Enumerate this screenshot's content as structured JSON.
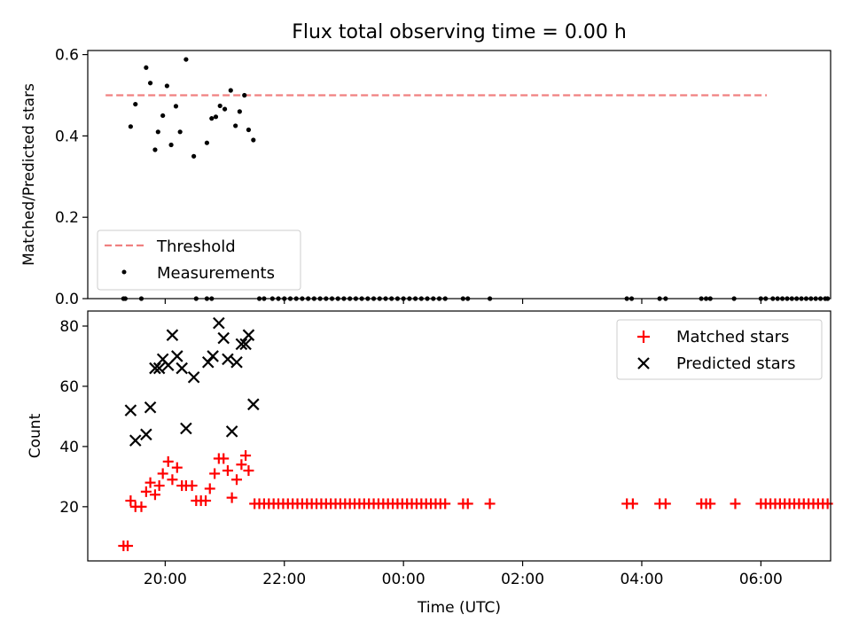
{
  "chart_data": [
    {
      "type": "scatter",
      "title": "Flux total observing time = 0.00 h",
      "ylabel": "Matched/Predicted stars",
      "xlabel": "",
      "xlim": [
        18.7,
        31.17
      ],
      "ylim": [
        0.0,
        0.61
      ],
      "yticks": [
        0.0,
        0.2,
        0.4,
        0.6
      ],
      "ytick_labels": [
        "0.0",
        "0.2",
        "0.4",
        "0.6"
      ],
      "x_tick_hours": [
        20,
        22,
        24,
        26,
        28,
        30
      ],
      "grid": false,
      "legend": {
        "position": "lower-left",
        "entries": [
          "Threshold",
          "Measurements"
        ]
      },
      "threshold": {
        "name": "Threshold",
        "value": 0.5,
        "x_start": 19.0,
        "x_end": 30.1,
        "color": "#f08080",
        "style": "dashed"
      },
      "series": [
        {
          "name": "Measurements",
          "marker": "dot",
          "color": "#000000",
          "points": [
            [
              19.3,
              0.0
            ],
            [
              19.33,
              0.0
            ],
            [
              19.6,
              0.0
            ],
            [
              19.42,
              0.423
            ],
            [
              19.5,
              0.478
            ],
            [
              19.68,
              0.568
            ],
            [
              19.75,
              0.53
            ],
            [
              19.83,
              0.366
            ],
            [
              19.88,
              0.41
            ],
            [
              19.96,
              0.45
            ],
            [
              20.03,
              0.523
            ],
            [
              20.1,
              0.378
            ],
            [
              20.18,
              0.473
            ],
            [
              20.25,
              0.41
            ],
            [
              20.35,
              0.588
            ],
            [
              20.48,
              0.35
            ],
            [
              20.7,
              0.383
            ],
            [
              20.78,
              0.443
            ],
            [
              20.85,
              0.447
            ],
            [
              20.92,
              0.474
            ],
            [
              21.0,
              0.466
            ],
            [
              21.1,
              0.512
            ],
            [
              21.18,
              0.425
            ],
            [
              21.25,
              0.46
            ],
            [
              21.33,
              0.5
            ],
            [
              21.4,
              0.415
            ],
            [
              21.48,
              0.39
            ],
            [
              20.52,
              0.0
            ],
            [
              20.7,
              0.0
            ],
            [
              20.78,
              0.0
            ],
            [
              21.58,
              0.0
            ],
            [
              21.66,
              0.0
            ],
            [
              21.8,
              0.0
            ],
            [
              21.9,
              0.0
            ],
            [
              22.0,
              0.0
            ],
            [
              22.1,
              0.0
            ],
            [
              22.2,
              0.0
            ],
            [
              22.3,
              0.0
            ],
            [
              22.4,
              0.0
            ],
            [
              22.5,
              0.0
            ],
            [
              22.6,
              0.0
            ],
            [
              22.7,
              0.0
            ],
            [
              22.8,
              0.0
            ],
            [
              22.9,
              0.0
            ],
            [
              23.0,
              0.0
            ],
            [
              23.1,
              0.0
            ],
            [
              23.2,
              0.0
            ],
            [
              23.3,
              0.0
            ],
            [
              23.4,
              0.0
            ],
            [
              23.5,
              0.0
            ],
            [
              23.6,
              0.0
            ],
            [
              23.7,
              0.0
            ],
            [
              23.8,
              0.0
            ],
            [
              23.9,
              0.0
            ],
            [
              24.0,
              0.0
            ],
            [
              24.1,
              0.0
            ],
            [
              24.2,
              0.0
            ],
            [
              24.3,
              0.0
            ],
            [
              24.4,
              0.0
            ],
            [
              24.5,
              0.0
            ],
            [
              24.6,
              0.0
            ],
            [
              24.7,
              0.0
            ],
            [
              25.0,
              0.0
            ],
            [
              25.08,
              0.0
            ],
            [
              25.45,
              0.0
            ],
            [
              27.75,
              0.0
            ],
            [
              27.83,
              0.0
            ],
            [
              28.3,
              0.0
            ],
            [
              28.4,
              0.0
            ],
            [
              29.0,
              0.0
            ],
            [
              29.08,
              0.0
            ],
            [
              29.15,
              0.0
            ],
            [
              29.55,
              0.0
            ],
            [
              30.0,
              0.0
            ],
            [
              30.08,
              0.0
            ],
            [
              30.2,
              0.0
            ],
            [
              30.28,
              0.0
            ],
            [
              30.36,
              0.0
            ],
            [
              30.44,
              0.0
            ],
            [
              30.52,
              0.0
            ],
            [
              30.6,
              0.0
            ],
            [
              30.68,
              0.0
            ],
            [
              30.76,
              0.0
            ],
            [
              30.84,
              0.0
            ],
            [
              30.92,
              0.0
            ],
            [
              31.0,
              0.0
            ],
            [
              31.08,
              0.0
            ],
            [
              31.12,
              0.0
            ]
          ]
        }
      ]
    },
    {
      "type": "scatter",
      "title": "",
      "ylabel": "Count",
      "xlabel": "Time (UTC)",
      "xlim": [
        18.7,
        31.17
      ],
      "ylim": [
        2.0,
        85.0
      ],
      "yticks": [
        20,
        40,
        60,
        80
      ],
      "ytick_labels": [
        "20",
        "40",
        "60",
        "80"
      ],
      "x_tick_hours": [
        20,
        22,
        24,
        26,
        28,
        30
      ],
      "xtick_labels": [
        "20:00",
        "22:00",
        "00:00",
        "02:00",
        "04:00",
        "06:00"
      ],
      "grid": false,
      "legend": {
        "position": "upper-right",
        "entries": [
          "Matched stars",
          "Predicted stars"
        ]
      },
      "series": [
        {
          "name": "Matched stars",
          "marker": "plus",
          "color": "#ff0000",
          "points": [
            [
              19.3,
              7
            ],
            [
              19.37,
              7
            ],
            [
              19.42,
              22
            ],
            [
              19.5,
              20
            ],
            [
              19.6,
              20
            ],
            [
              19.68,
              25
            ],
            [
              19.75,
              28
            ],
            [
              19.83,
              24
            ],
            [
              19.9,
              27
            ],
            [
              19.96,
              31
            ],
            [
              20.05,
              35
            ],
            [
              20.12,
              29
            ],
            [
              20.2,
              33
            ],
            [
              20.28,
              27
            ],
            [
              20.35,
              27
            ],
            [
              20.45,
              27
            ],
            [
              20.52,
              22
            ],
            [
              20.6,
              22
            ],
            [
              20.68,
              22
            ],
            [
              20.75,
              26
            ],
            [
              20.83,
              31
            ],
            [
              20.9,
              36
            ],
            [
              20.98,
              36
            ],
            [
              21.05,
              32
            ],
            [
              21.12,
              23
            ],
            [
              21.2,
              29
            ],
            [
              21.28,
              34
            ],
            [
              21.35,
              37
            ],
            [
              21.4,
              32
            ],
            [
              21.5,
              21
            ],
            [
              21.58,
              21
            ],
            [
              21.66,
              21
            ],
            [
              21.74,
              21
            ],
            [
              21.82,
              21
            ],
            [
              21.9,
              21
            ],
            [
              21.98,
              21
            ],
            [
              22.06,
              21
            ],
            [
              22.14,
              21
            ],
            [
              22.22,
              21
            ],
            [
              22.3,
              21
            ],
            [
              22.38,
              21
            ],
            [
              22.46,
              21
            ],
            [
              22.54,
              21
            ],
            [
              22.62,
              21
            ],
            [
              22.7,
              21
            ],
            [
              22.78,
              21
            ],
            [
              22.86,
              21
            ],
            [
              22.94,
              21
            ],
            [
              23.02,
              21
            ],
            [
              23.1,
              21
            ],
            [
              23.18,
              21
            ],
            [
              23.26,
              21
            ],
            [
              23.34,
              21
            ],
            [
              23.42,
              21
            ],
            [
              23.5,
              21
            ],
            [
              23.58,
              21
            ],
            [
              23.66,
              21
            ],
            [
              23.74,
              21
            ],
            [
              23.82,
              21
            ],
            [
              23.9,
              21
            ],
            [
              23.98,
              21
            ],
            [
              24.06,
              21
            ],
            [
              24.14,
              21
            ],
            [
              24.22,
              21
            ],
            [
              24.3,
              21
            ],
            [
              24.38,
              21
            ],
            [
              24.46,
              21
            ],
            [
              24.54,
              21
            ],
            [
              24.62,
              21
            ],
            [
              24.7,
              21
            ],
            [
              25.0,
              21
            ],
            [
              25.08,
              21
            ],
            [
              25.45,
              21
            ],
            [
              27.75,
              21
            ],
            [
              27.85,
              21
            ],
            [
              28.3,
              21
            ],
            [
              28.4,
              21
            ],
            [
              29.0,
              21
            ],
            [
              29.08,
              21
            ],
            [
              29.15,
              21
            ],
            [
              29.57,
              21
            ],
            [
              30.0,
              21
            ],
            [
              30.08,
              21
            ],
            [
              30.16,
              21
            ],
            [
              30.24,
              21
            ],
            [
              30.32,
              21
            ],
            [
              30.4,
              21
            ],
            [
              30.48,
              21
            ],
            [
              30.56,
              21
            ],
            [
              30.64,
              21
            ],
            [
              30.72,
              21
            ],
            [
              30.8,
              21
            ],
            [
              30.88,
              21
            ],
            [
              30.96,
              21
            ],
            [
              31.04,
              21
            ],
            [
              31.12,
              21
            ]
          ]
        },
        {
          "name": "Predicted stars",
          "marker": "x",
          "color": "#000000",
          "points": [
            [
              19.42,
              52
            ],
            [
              19.5,
              42
            ],
            [
              19.68,
              44
            ],
            [
              19.75,
              53
            ],
            [
              19.83,
              66
            ],
            [
              19.9,
              66
            ],
            [
              19.96,
              69
            ],
            [
              20.05,
              67
            ],
            [
              20.12,
              77
            ],
            [
              20.2,
              70
            ],
            [
              20.28,
              66
            ],
            [
              20.35,
              46
            ],
            [
              20.48,
              63
            ],
            [
              20.72,
              68
            ],
            [
              20.8,
              70
            ],
            [
              20.9,
              81
            ],
            [
              20.98,
              76
            ],
            [
              21.05,
              69
            ],
            [
              21.12,
              45
            ],
            [
              21.2,
              68
            ],
            [
              21.28,
              74
            ],
            [
              21.35,
              74
            ],
            [
              21.4,
              77
            ],
            [
              21.48,
              54
            ]
          ]
        }
      ]
    }
  ]
}
